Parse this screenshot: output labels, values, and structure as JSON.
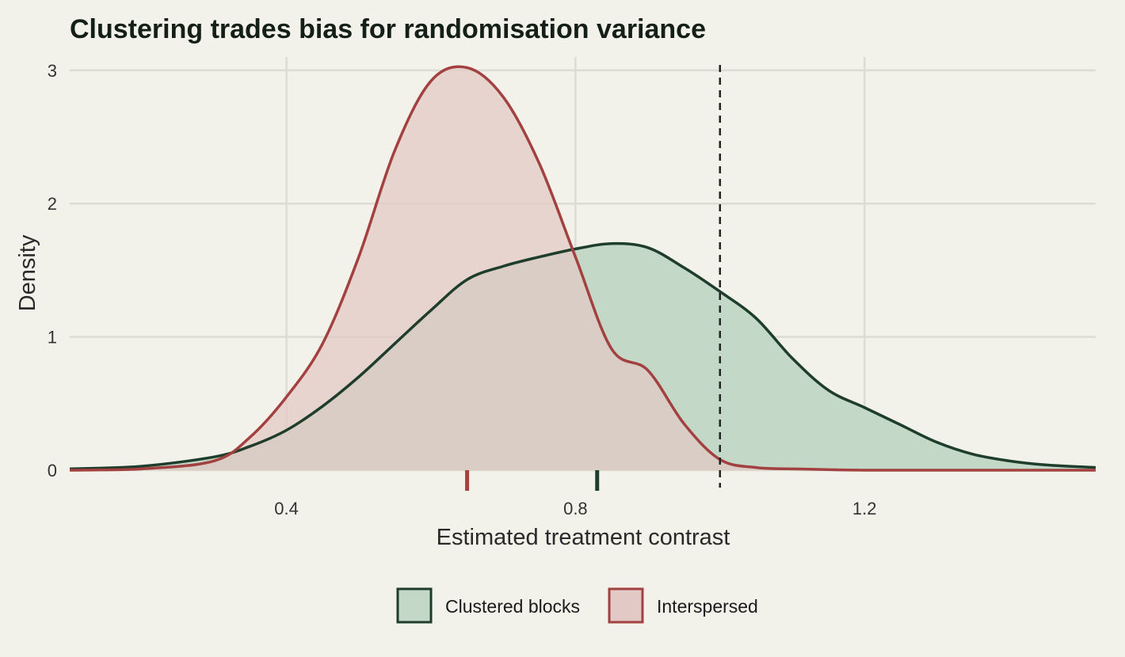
{
  "chart_data": {
    "type": "area",
    "title": "Clustering trades bias for randomisation variance",
    "xlabel": "Estimated treatment contrast",
    "ylabel": "Density",
    "xlim": [
      0.1,
      1.52
    ],
    "ylim": [
      0,
      3.1
    ],
    "x_ticks": [
      {
        "value": 0.4,
        "label": "0.4"
      },
      {
        "value": 0.8,
        "label": "0.8"
      },
      {
        "value": 1.2,
        "label": "1.2"
      }
    ],
    "y_ticks": [
      {
        "value": 0,
        "label": "0"
      },
      {
        "value": 1,
        "label": "1"
      },
      {
        "value": 2,
        "label": "2"
      },
      {
        "value": 3,
        "label": "3"
      }
    ],
    "grid": true,
    "legend_position": "bottom",
    "reference_line": {
      "x": 1.0,
      "style": "dashed",
      "color": "#222222"
    },
    "series": [
      {
        "name": "Clustered blocks",
        "color": "#1f3d2c",
        "fill": "#c4d8c8",
        "mean_tick": 0.83,
        "x": [
          0.1,
          0.2,
          0.3,
          0.35,
          0.4,
          0.45,
          0.5,
          0.55,
          0.6,
          0.65,
          0.7,
          0.75,
          0.8,
          0.85,
          0.9,
          0.95,
          1.0,
          1.05,
          1.1,
          1.15,
          1.2,
          1.25,
          1.3,
          1.35,
          1.4,
          1.45,
          1.52
        ],
        "y": [
          0.01,
          0.03,
          0.1,
          0.18,
          0.3,
          0.48,
          0.7,
          0.95,
          1.2,
          1.43,
          1.53,
          1.6,
          1.66,
          1.7,
          1.67,
          1.52,
          1.34,
          1.14,
          0.84,
          0.6,
          0.47,
          0.34,
          0.21,
          0.12,
          0.07,
          0.04,
          0.02
        ]
      },
      {
        "name": "Interspersed",
        "color": "#a34040",
        "fill": "#e2c9c5",
        "mean_tick": 0.65,
        "x": [
          0.1,
          0.2,
          0.3,
          0.35,
          0.4,
          0.45,
          0.5,
          0.55,
          0.6,
          0.65,
          0.7,
          0.75,
          0.8,
          0.85,
          0.9,
          0.95,
          1.0,
          1.05,
          1.1,
          1.2,
          1.3,
          1.52
        ],
        "y": [
          0.0,
          0.01,
          0.07,
          0.25,
          0.55,
          0.95,
          1.6,
          2.4,
          2.92,
          3.02,
          2.8,
          2.3,
          1.6,
          0.91,
          0.75,
          0.35,
          0.08,
          0.02,
          0.01,
          0.0,
          0.0,
          0.0
        ]
      }
    ]
  }
}
